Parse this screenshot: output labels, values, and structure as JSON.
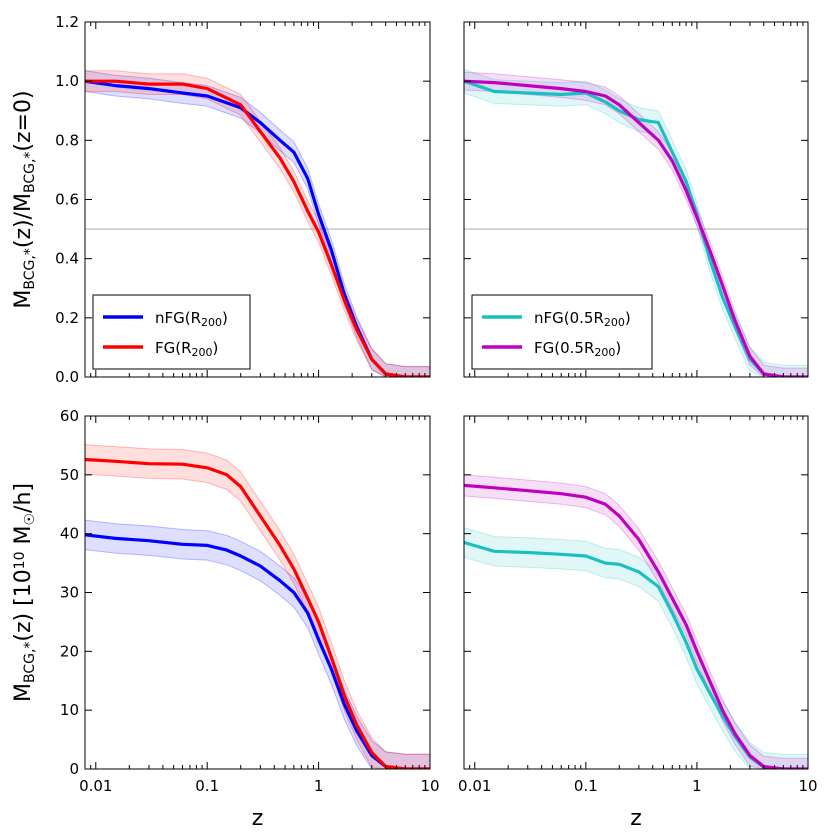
{
  "chart_data": [
    {
      "type": "line",
      "panel": "top-left",
      "ylabel_parts": [
        "M",
        "BCG,*",
        "(z)/M",
        "BCG,*",
        "(z=0)"
      ],
      "x_scale": "log",
      "xlim": [
        0.008,
        10
      ],
      "ylim": [
        0.0,
        1.2
      ],
      "yticks": [
        "0.0",
        "0.2",
        "0.4",
        "0.6",
        "0.8",
        "1.0",
        "1.2"
      ],
      "hline": 0.5,
      "legend_position": "lower-left",
      "series": [
        {
          "name": "nFG(R200)",
          "label_main": "nFG(R",
          "label_sub": "200",
          "label_end": ")",
          "color": "#0000ff",
          "x": [
            0.008,
            0.015,
            0.03,
            0.06,
            0.1,
            0.2,
            0.3,
            0.45,
            0.6,
            0.8,
            1.0,
            1.3,
            1.7,
            2.2,
            3.0,
            4.0,
            6.0,
            10.0
          ],
          "y": [
            1.0,
            0.985,
            0.975,
            0.96,
            0.95,
            0.91,
            0.86,
            0.8,
            0.76,
            0.67,
            0.55,
            0.43,
            0.28,
            0.17,
            0.06,
            0.01,
            0.0,
            0.0
          ],
          "band": 0.035
        },
        {
          "name": "FG(R200)",
          "label_main": "FG(R",
          "label_sub": "200",
          "label_end": ")",
          "color": "#ff0000",
          "x": [
            0.008,
            0.015,
            0.03,
            0.06,
            0.1,
            0.2,
            0.3,
            0.45,
            0.6,
            0.8,
            1.0,
            1.3,
            1.7,
            2.2,
            3.0,
            4.0,
            6.0,
            10.0
          ],
          "y": [
            1.0,
            1.0,
            0.99,
            0.99,
            0.975,
            0.92,
            0.83,
            0.74,
            0.66,
            0.56,
            0.49,
            0.38,
            0.26,
            0.16,
            0.06,
            0.01,
            0.0,
            0.0
          ],
          "band": 0.035
        }
      ]
    },
    {
      "type": "line",
      "panel": "top-right",
      "x_scale": "log",
      "xlim": [
        0.008,
        10
      ],
      "ylim": [
        0.0,
        1.2
      ],
      "hline": 0.5,
      "legend_position": "lower-left",
      "series": [
        {
          "name": "nFG(0.5R200)",
          "label_main": "nFG(0.5R",
          "label_sub": "200",
          "label_end": ")",
          "color": "#1ac0c0",
          "x": [
            0.008,
            0.015,
            0.03,
            0.06,
            0.1,
            0.15,
            0.2,
            0.3,
            0.45,
            0.6,
            0.8,
            1.0,
            1.3,
            1.7,
            2.2,
            3.0,
            4.0,
            6.0,
            10.0
          ],
          "y": [
            1.0,
            0.965,
            0.96,
            0.955,
            0.96,
            0.93,
            0.9,
            0.87,
            0.86,
            0.76,
            0.66,
            0.55,
            0.4,
            0.27,
            0.17,
            0.06,
            0.01,
            0.0,
            0.0
          ],
          "band": 0.04
        },
        {
          "name": "FG(0.5R200)",
          "label_main": "FG(0.5R",
          "label_sub": "200",
          "label_end": ")",
          "color": "#c000c0",
          "x": [
            0.008,
            0.015,
            0.03,
            0.06,
            0.1,
            0.15,
            0.2,
            0.3,
            0.45,
            0.6,
            0.8,
            1.0,
            1.3,
            1.7,
            2.2,
            3.0,
            4.0,
            6.0,
            10.0
          ],
          "y": [
            1.0,
            0.995,
            0.985,
            0.975,
            0.965,
            0.95,
            0.92,
            0.86,
            0.8,
            0.73,
            0.63,
            0.54,
            0.43,
            0.31,
            0.19,
            0.07,
            0.01,
            0.0,
            0.0
          ],
          "band": 0.03
        }
      ]
    },
    {
      "type": "line",
      "panel": "bottom-left",
      "ylabel_parts": [
        "M",
        "BCG,*",
        "(z) [10",
        "10",
        " M",
        "☉",
        "/h]"
      ],
      "xlabel": "z",
      "x_scale": "log",
      "xlim": [
        0.008,
        10
      ],
      "ylim": [
        0,
        60
      ],
      "xticks": [
        "0.01",
        "0.1",
        "1",
        "10"
      ],
      "yticks": [
        "0",
        "10",
        "20",
        "30",
        "40",
        "50",
        "60"
      ],
      "series": [
        {
          "name": "nFG(R200)",
          "color": "#0000ff",
          "x": [
            0.008,
            0.015,
            0.03,
            0.06,
            0.1,
            0.15,
            0.2,
            0.3,
            0.45,
            0.6,
            0.8,
            1.0,
            1.3,
            1.7,
            2.2,
            3.0,
            4.0,
            6.0,
            10.0
          ],
          "y": [
            39.8,
            39.2,
            38.8,
            38.2,
            38.0,
            37.2,
            36.2,
            34.5,
            32.0,
            30.0,
            26.5,
            22.0,
            17.0,
            11.0,
            6.5,
            2.3,
            0.4,
            0.0,
            0.0
          ],
          "band": 2.5
        },
        {
          "name": "FG(R200)",
          "color": "#ff0000",
          "x": [
            0.008,
            0.015,
            0.03,
            0.06,
            0.1,
            0.15,
            0.2,
            0.3,
            0.45,
            0.6,
            0.8,
            1.0,
            1.3,
            1.7,
            2.2,
            3.0,
            4.0,
            6.0,
            10.0
          ],
          "y": [
            52.6,
            52.3,
            51.9,
            51.8,
            51.2,
            50.0,
            48.0,
            43.0,
            38.0,
            34.0,
            29.0,
            25.0,
            19.0,
            12.5,
            7.5,
            2.8,
            0.4,
            0.0,
            0.0
          ],
          "band": 2.5
        }
      ]
    },
    {
      "type": "line",
      "panel": "bottom-right",
      "xlabel": "z",
      "x_scale": "log",
      "xlim": [
        0.008,
        10
      ],
      "ylim": [
        0,
        60
      ],
      "xticks": [
        "0.01",
        "0.1",
        "1",
        "10"
      ],
      "series": [
        {
          "name": "nFG(0.5R200)",
          "color": "#1ac0c0",
          "x": [
            0.008,
            0.015,
            0.03,
            0.06,
            0.1,
            0.15,
            0.2,
            0.3,
            0.45,
            0.6,
            0.8,
            1.0,
            1.3,
            1.7,
            2.2,
            3.0,
            4.0,
            6.0,
            10.0
          ],
          "y": [
            38.5,
            37.0,
            36.8,
            36.5,
            36.2,
            35.0,
            34.8,
            33.5,
            31.0,
            26.5,
            21.5,
            17.0,
            13.0,
            9.0,
            5.5,
            2.0,
            0.3,
            0.0,
            0.0
          ],
          "band": 2.5
        },
        {
          "name": "FG(0.5R200)",
          "color": "#c000c0",
          "x": [
            0.008,
            0.015,
            0.03,
            0.06,
            0.1,
            0.15,
            0.2,
            0.3,
            0.45,
            0.6,
            0.8,
            1.0,
            1.3,
            1.7,
            2.2,
            3.0,
            4.0,
            6.0,
            10.0
          ],
          "y": [
            48.2,
            47.8,
            47.3,
            46.8,
            46.2,
            45.0,
            43.0,
            39.0,
            33.5,
            29.0,
            24.5,
            20.0,
            15.0,
            10.0,
            6.0,
            2.3,
            0.4,
            0.0,
            0.0
          ],
          "band": 1.8
        }
      ]
    }
  ]
}
